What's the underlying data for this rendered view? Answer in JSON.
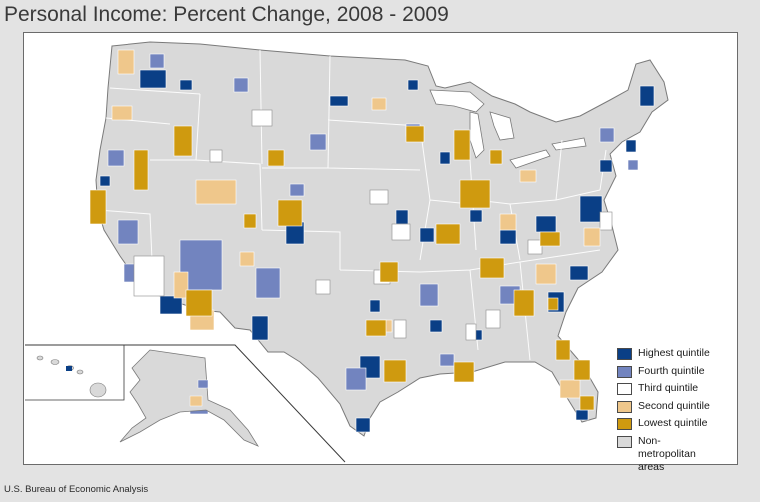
{
  "title": "Personal Income: Percent Change, 2008 - 2009",
  "source": "U.S. Bureau of Economic Analysis",
  "colors": {
    "highest": "#0a3f86",
    "fourth": "#7284bf",
    "third": "#ffffff",
    "second": "#efc78b",
    "lowest": "#cf9a0f",
    "nonmetro": "#d9d9d9",
    "border": "#8c8c8c"
  },
  "legend": [
    {
      "key": "highest",
      "label": "Highest quintile"
    },
    {
      "key": "fourth",
      "label": "Fourth quintile"
    },
    {
      "key": "third",
      "label": "Third quintile"
    },
    {
      "key": "second",
      "label": "Second quintile"
    },
    {
      "key": "lowest",
      "label": "Lowest quintile"
    },
    {
      "key": "nonmetro",
      "label": "Non-metropolitan areas"
    }
  ]
}
